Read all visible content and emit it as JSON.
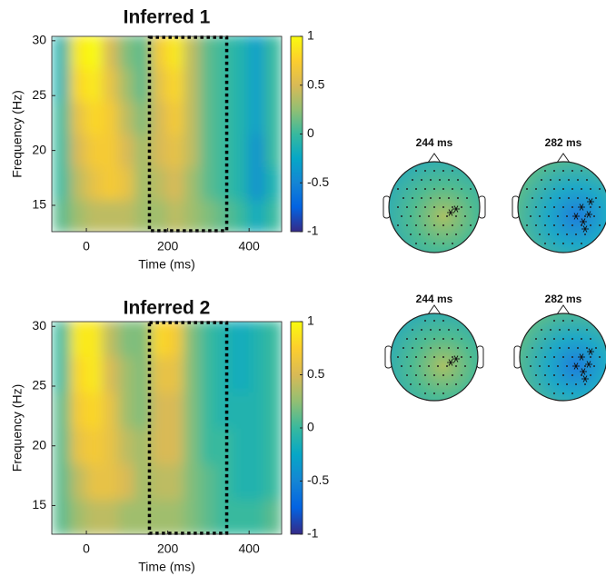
{
  "chart_data": [
    {
      "type": "heatmap",
      "title": "Inferred 1",
      "x_label": "Time (ms)",
      "y_label": "Frequency (Hz)",
      "x": [
        -60,
        -20,
        20,
        60,
        100,
        140,
        180,
        220,
        260,
        300,
        340,
        380,
        420,
        460
      ],
      "y": [
        14,
        17,
        20,
        23,
        26,
        29
      ],
      "z": [
        [
          0.1,
          0.3,
          0.4,
          0.4,
          0.4,
          0.3,
          0.3,
          0.4,
          0.3,
          0.2,
          0.1,
          0.0,
          -0.2,
          0.0
        ],
        [
          0.0,
          0.4,
          0.6,
          0.7,
          0.6,
          0.3,
          0.4,
          0.5,
          0.3,
          0.1,
          0.0,
          -0.1,
          -0.4,
          -0.1
        ],
        [
          0.0,
          0.5,
          0.7,
          0.7,
          0.5,
          0.3,
          0.5,
          0.6,
          0.4,
          0.1,
          0.0,
          -0.1,
          -0.4,
          0.0
        ],
        [
          0.0,
          0.6,
          0.8,
          0.7,
          0.4,
          0.2,
          0.5,
          0.7,
          0.4,
          0.1,
          0.0,
          -0.1,
          -0.3,
          0.0
        ],
        [
          -0.1,
          0.8,
          0.9,
          0.6,
          0.3,
          0.1,
          0.6,
          0.8,
          0.4,
          0.1,
          0.0,
          -0.1,
          -0.3,
          0.0
        ],
        [
          -0.1,
          0.9,
          1.0,
          0.5,
          0.2,
          0.1,
          0.7,
          0.9,
          0.4,
          0.1,
          0.0,
          -0.1,
          -0.3,
          0.0
        ]
      ],
      "xlim": [
        -85,
        480
      ],
      "ylim": [
        12.6,
        30.4
      ],
      "xticks": [
        0,
        200,
        400
      ],
      "yticks": [
        15,
        20,
        25,
        30
      ],
      "clim": [
        -1,
        1
      ],
      "cticks": [
        -1,
        -0.5,
        0,
        0.5,
        1
      ],
      "span": [
        155,
        345
      ],
      "topomap_titles": [
        "244 ms",
        "282 ms"
      ]
    },
    {
      "type": "heatmap",
      "title": "Inferred 2",
      "x_label": "Time (ms)",
      "y_label": "Frequency (Hz)",
      "x": [
        -60,
        -20,
        20,
        60,
        100,
        140,
        180,
        220,
        260,
        300,
        340,
        380,
        420,
        460
      ],
      "y": [
        14,
        17,
        20,
        23,
        26,
        29
      ],
      "z": [
        [
          0.1,
          0.3,
          0.4,
          0.4,
          0.3,
          0.3,
          0.3,
          0.3,
          0.2,
          0.1,
          0.0,
          0.0,
          0.0,
          0.1
        ],
        [
          0.1,
          0.4,
          0.6,
          0.6,
          0.5,
          0.3,
          0.4,
          0.4,
          0.2,
          0.1,
          0.0,
          -0.1,
          -0.1,
          0.0
        ],
        [
          0.1,
          0.6,
          0.7,
          0.6,
          0.4,
          0.3,
          0.5,
          0.5,
          0.2,
          0.0,
          0.0,
          -0.1,
          -0.1,
          0.0
        ],
        [
          0.1,
          0.7,
          0.8,
          0.6,
          0.3,
          0.2,
          0.5,
          0.5,
          0.2,
          0.0,
          -0.1,
          -0.1,
          -0.1,
          0.0
        ],
        [
          0.0,
          0.8,
          0.9,
          0.5,
          0.3,
          0.2,
          0.6,
          0.6,
          0.2,
          0.0,
          -0.1,
          -0.2,
          -0.1,
          0.0
        ],
        [
          0.0,
          0.9,
          0.9,
          0.4,
          0.2,
          0.2,
          0.8,
          0.7,
          0.2,
          0.0,
          -0.1,
          -0.2,
          -0.1,
          0.0
        ]
      ],
      "xlim": [
        -85,
        480
      ],
      "ylim": [
        12.6,
        30.4
      ],
      "xticks": [
        0,
        200,
        400
      ],
      "yticks": [
        15,
        20,
        25,
        30
      ],
      "clim": [
        -1,
        1
      ],
      "cticks": [
        -1,
        -0.5,
        0,
        0.5,
        1
      ],
      "span": [
        155,
        345
      ],
      "topomap_titles": [
        "244 ms",
        "282 ms"
      ]
    }
  ]
}
